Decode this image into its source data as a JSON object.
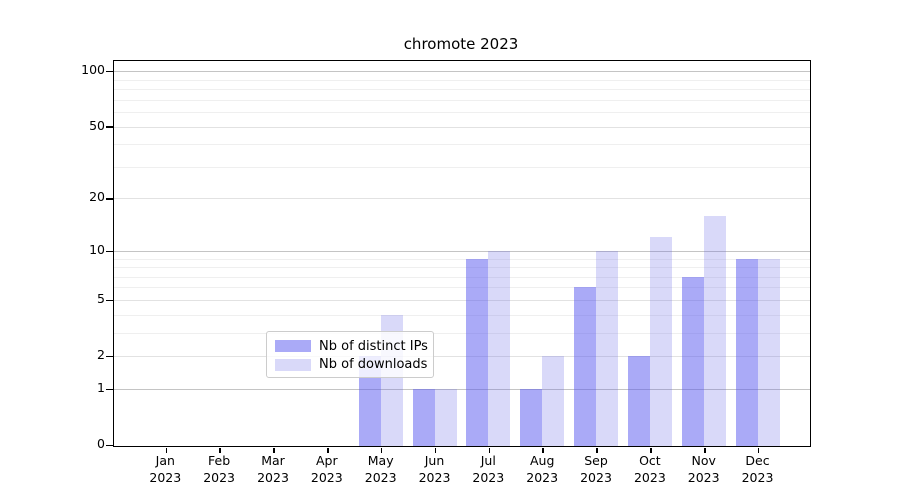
{
  "title": "chromote 2023",
  "chart_data": {
    "type": "bar",
    "title": "chromote 2023",
    "yscale": "log1p",
    "grid": "horizontal",
    "legend_position": "bottom-center-inside",
    "categories": [
      "Jan 2023",
      "Feb 2023",
      "Mar 2023",
      "Apr 2023",
      "May 2023",
      "Jun 2023",
      "Jul 2023",
      "Aug 2023",
      "Sep 2023",
      "Oct 2023",
      "Nov 2023",
      "Dec 2023"
    ],
    "series": [
      {
        "name": "Nb of distinct IPs",
        "color": "rgba(85,85,240,0.5)",
        "color_hex": "#aaaaf7",
        "values": [
          0,
          0,
          0,
          0,
          2,
          1,
          9,
          1,
          6,
          2,
          7,
          9
        ]
      },
      {
        "name": "Nb of downloads",
        "color": "rgba(95,95,230,0.24)",
        "color_hex": "#d9d9f8",
        "values": [
          0,
          0,
          0,
          0,
          4,
          1,
          10,
          2,
          10,
          12,
          16,
          9
        ]
      }
    ],
    "yticks_labeled": [
      0,
      1,
      2,
      5,
      10,
      20,
      50,
      100
    ],
    "grid_major": [
      1,
      10,
      100
    ],
    "grid_mid": [
      2,
      5,
      20,
      50
    ],
    "grid_minor": [
      3,
      4,
      6,
      7,
      8,
      9,
      30,
      40,
      60,
      70,
      80,
      90
    ],
    "ylim": [
      0,
      113
    ]
  },
  "colors": {
    "axis": "#000000",
    "grid_major": "#c4c4c4",
    "grid_minor": "#efefef",
    "background": "#ffffff",
    "legend_border": "#cccccc"
  }
}
